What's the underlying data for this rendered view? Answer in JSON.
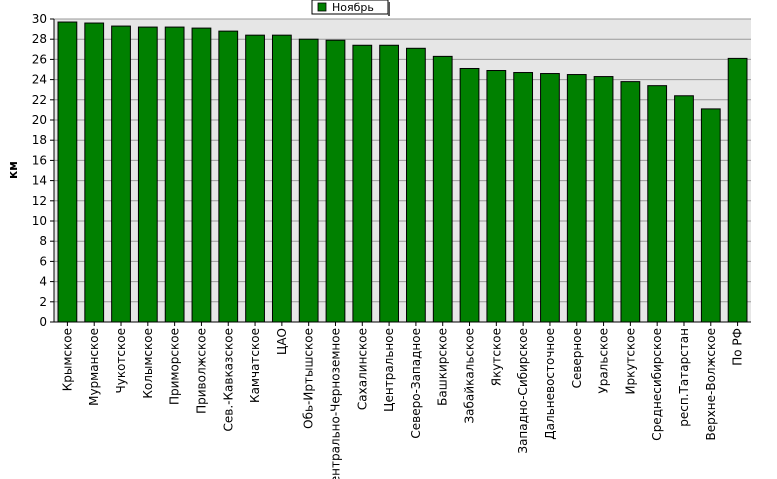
{
  "chart_data": {
    "type": "bar",
    "ylabel": "км",
    "ylim": [
      0,
      30
    ],
    "ytick_step": 2,
    "grid": true,
    "legend_position": "top-center",
    "categories": [
      "Крымское",
      "Мурманское",
      "Чукотское",
      "Колымское",
      "Приморское",
      "Приволжское",
      "Сев.-Кавказское",
      "Камчатское",
      "ЦАО",
      "Обь-Иртышское",
      "Центрально-Черноземное",
      "Сахалинское",
      "Центральное",
      "Северо-Западное",
      "Башкирское",
      "Забайкальское",
      "Якутское",
      "Западно-Сибирское",
      "Дальневосточное",
      "Северное",
      "Уральское",
      "Иркутское",
      "Среднесибирское",
      "респ.Татарстан",
      "Верхне-Волжское",
      "По РФ"
    ],
    "series": [
      {
        "name": "Ноябрь",
        "color": "#008000",
        "values": [
          29.7,
          29.6,
          29.3,
          29.2,
          29.2,
          29.1,
          28.8,
          28.4,
          28.4,
          28.0,
          27.9,
          27.4,
          27.4,
          27.1,
          26.3,
          25.1,
          24.9,
          24.7,
          24.6,
          24.5,
          24.3,
          23.8,
          23.4,
          22.4,
          21.1,
          26.1
        ]
      }
    ]
  }
}
